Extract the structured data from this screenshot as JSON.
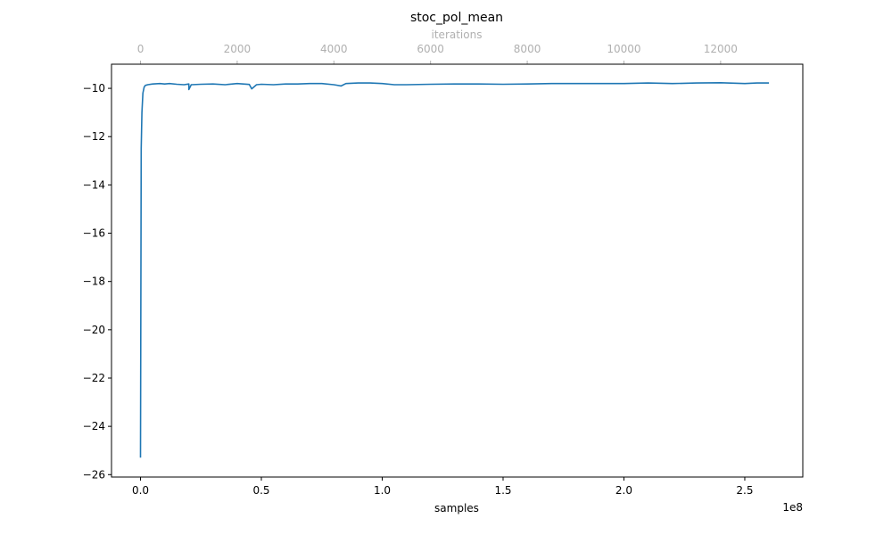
{
  "chart_data": {
    "type": "line",
    "title": "stoc_pol_mean",
    "xlabel": "samples",
    "x_offset_label": "1e8",
    "x_top_label": "iterations",
    "ylabel": "",
    "xlim": [
      -0.12,
      2.74
    ],
    "ylim": [
      -26.1,
      -9.0
    ],
    "x_top_range": [
      0,
      13000
    ],
    "x_ticks": [
      0.0,
      0.5,
      1.0,
      1.5,
      2.0,
      2.5
    ],
    "x_tick_labels": [
      "0.0",
      "0.5",
      "1.0",
      "1.5",
      "2.0",
      "2.5"
    ],
    "x_top_ticks": [
      0,
      2000,
      4000,
      6000,
      8000,
      10000,
      12000
    ],
    "x_top_tick_labels": [
      "0",
      "2000",
      "4000",
      "6000",
      "8000",
      "10000",
      "12000"
    ],
    "y_ticks": [
      -26,
      -24,
      -22,
      -20,
      -18,
      -16,
      -14,
      -12,
      -10
    ],
    "y_tick_labels": [
      "−26",
      "−24",
      "−22",
      "−20",
      "−18",
      "−16",
      "−14",
      "−12",
      "−10"
    ],
    "grid": false,
    "series": [
      {
        "color": "#1f77b4",
        "x": [
          0.0,
          0.003,
          0.006,
          0.01,
          0.015,
          0.02,
          0.03,
          0.05,
          0.08,
          0.1,
          0.12,
          0.15,
          0.18,
          0.2,
          0.2,
          0.21,
          0.25,
          0.3,
          0.35,
          0.4,
          0.45,
          0.46,
          0.48,
          0.5,
          0.55,
          0.6,
          0.65,
          0.7,
          0.75,
          0.8,
          0.83,
          0.85,
          0.9,
          0.95,
          1.0,
          1.05,
          1.1,
          1.2,
          1.3,
          1.4,
          1.5,
          1.6,
          1.7,
          1.8,
          1.9,
          2.0,
          2.1,
          2.2,
          2.3,
          2.4,
          2.5,
          2.55,
          2.6
        ],
        "y": [
          -25.3,
          -12.5,
          -11.0,
          -10.2,
          -9.95,
          -9.88,
          -9.85,
          -9.82,
          -9.8,
          -9.82,
          -9.8,
          -9.83,
          -9.85,
          -9.82,
          -10.05,
          -9.85,
          -9.83,
          -9.82,
          -9.85,
          -9.8,
          -9.84,
          -10.02,
          -9.85,
          -9.83,
          -9.85,
          -9.82,
          -9.82,
          -9.8,
          -9.8,
          -9.85,
          -9.9,
          -9.8,
          -9.78,
          -9.78,
          -9.8,
          -9.85,
          -9.85,
          -9.83,
          -9.82,
          -9.82,
          -9.83,
          -9.82,
          -9.8,
          -9.8,
          -9.8,
          -9.8,
          -9.78,
          -9.8,
          -9.78,
          -9.77,
          -9.8,
          -9.78,
          -9.78
        ]
      }
    ]
  }
}
